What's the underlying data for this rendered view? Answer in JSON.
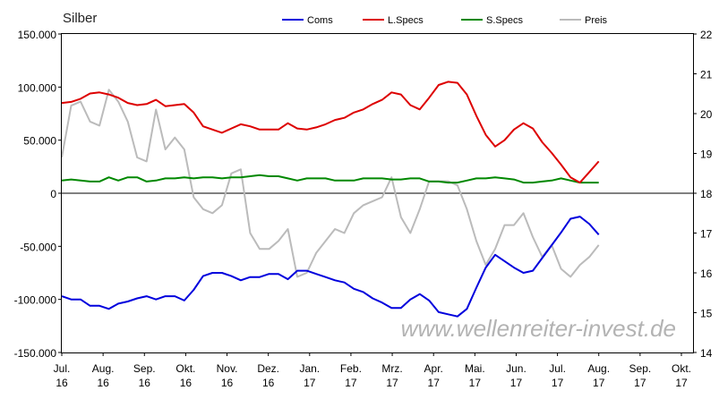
{
  "chart_data": {
    "type": "line",
    "title": "Silber",
    "watermark": "www.wellenreiter-invest.de",
    "x_ticks": [
      {
        "month": "Jul.",
        "year": "16"
      },
      {
        "month": "Aug.",
        "year": "16"
      },
      {
        "month": "Sep.",
        "year": "16"
      },
      {
        "month": "Okt.",
        "year": "16"
      },
      {
        "month": "Nov.",
        "year": "16"
      },
      {
        "month": "Dez.",
        "year": "16"
      },
      {
        "month": "Jan.",
        "year": "17"
      },
      {
        "month": "Feb.",
        "year": "17"
      },
      {
        "month": "Mrz.",
        "year": "17"
      },
      {
        "month": "Apr.",
        "year": "17"
      },
      {
        "month": "Mai.",
        "year": "17"
      },
      {
        "month": "Jun.",
        "year": "17"
      },
      {
        "month": "Jul.",
        "year": "17"
      },
      {
        "month": "Aug.",
        "year": "17"
      },
      {
        "month": "Sep.",
        "year": "17"
      },
      {
        "month": "Okt.",
        "year": "17"
      }
    ],
    "y_left": {
      "min": -150000,
      "max": 150000,
      "ticks": [
        "150.000",
        "100.000",
        "50.000",
        "0",
        "-50.000",
        "-100.000",
        "-150.000"
      ],
      "tick_values": [
        150000,
        100000,
        50000,
        0,
        -50000,
        -100000,
        -150000
      ]
    },
    "y_right": {
      "min": 14,
      "max": 22,
      "ticks": [
        "22",
        "21",
        "20",
        "19",
        "18",
        "17",
        "16",
        "15",
        "14"
      ],
      "tick_values": [
        22,
        21,
        20,
        19,
        18,
        17,
        16,
        15,
        14
      ]
    },
    "legend": {
      "placement": "top"
    },
    "series": [
      {
        "name": "Coms",
        "axis": "left",
        "color": "#0000dd",
        "values": [
          -97000,
          -100000,
          -100000,
          -106000,
          -106000,
          -109000,
          -104000,
          -102000,
          -99000,
          -97000,
          -100000,
          -97000,
          -97000,
          -101000,
          -91000,
          -78000,
          -75000,
          -75000,
          -78000,
          -82000,
          -79000,
          -79000,
          -76000,
          -76000,
          -81000,
          -73000,
          -73000,
          -76000,
          -79000,
          -82000,
          -84000,
          -90000,
          -93000,
          -99000,
          -103000,
          -108000,
          -108000,
          -100000,
          -95000,
          -101000,
          -112000,
          -114000,
          -116000,
          -109000,
          -89000,
          -70000,
          -58000,
          -64000,
          -70000,
          -75000,
          -73000,
          -61000,
          -49000,
          -37000,
          -24000,
          -22000,
          -29000,
          -39000
        ]
      },
      {
        "name": "L.Specs",
        "axis": "left",
        "color": "#dd0000",
        "values": [
          85000,
          86000,
          89000,
          94000,
          95000,
          93000,
          90000,
          85000,
          83000,
          84000,
          88000,
          82000,
          83000,
          84000,
          76000,
          63000,
          60000,
          57000,
          61000,
          65000,
          63000,
          60000,
          60000,
          60000,
          66000,
          61000,
          60000,
          62000,
          65000,
          69000,
          71000,
          76000,
          79000,
          84000,
          88000,
          95000,
          93000,
          83000,
          79000,
          90000,
          102000,
          105000,
          104000,
          93000,
          73000,
          55000,
          44000,
          50000,
          60000,
          66000,
          61000,
          48000,
          38000,
          27000,
          15000,
          10000,
          20000,
          30000
        ]
      },
      {
        "name": "S.Specs",
        "axis": "left",
        "color": "#008800",
        "values": [
          12000,
          13000,
          12000,
          11000,
          11000,
          15000,
          12000,
          15000,
          15000,
          11000,
          12000,
          14000,
          14000,
          15000,
          14000,
          15000,
          15000,
          14000,
          15000,
          15000,
          16000,
          17000,
          16000,
          16000,
          14000,
          12000,
          14000,
          14000,
          14000,
          12000,
          12000,
          12000,
          14000,
          14000,
          14000,
          13000,
          13000,
          14000,
          14000,
          11000,
          11000,
          10000,
          10000,
          12000,
          14000,
          14000,
          15000,
          14000,
          13000,
          10000,
          10000,
          11000,
          12000,
          14000,
          12000,
          10000,
          10000,
          10000
        ]
      },
      {
        "name": "Preis",
        "axis": "right",
        "color": "#bbbbbb",
        "values": [
          18.9,
          20.2,
          20.3,
          19.8,
          19.7,
          20.6,
          20.3,
          19.8,
          18.9,
          18.8,
          20.1,
          19.1,
          19.4,
          19.1,
          17.9,
          17.6,
          17.5,
          17.7,
          18.5,
          18.6,
          17.0,
          16.6,
          16.6,
          16.8,
          17.1,
          15.9,
          16.0,
          16.5,
          16.8,
          17.1,
          17.0,
          17.5,
          17.7,
          17.8,
          17.9,
          18.4,
          17.4,
          17.0,
          17.6,
          18.3,
          18.3,
          18.3,
          18.2,
          17.6,
          16.8,
          16.2,
          16.6,
          17.2,
          17.2,
          17.5,
          16.9,
          16.4,
          16.7,
          16.1,
          15.9,
          16.2,
          16.4,
          16.7
        ]
      }
    ]
  }
}
